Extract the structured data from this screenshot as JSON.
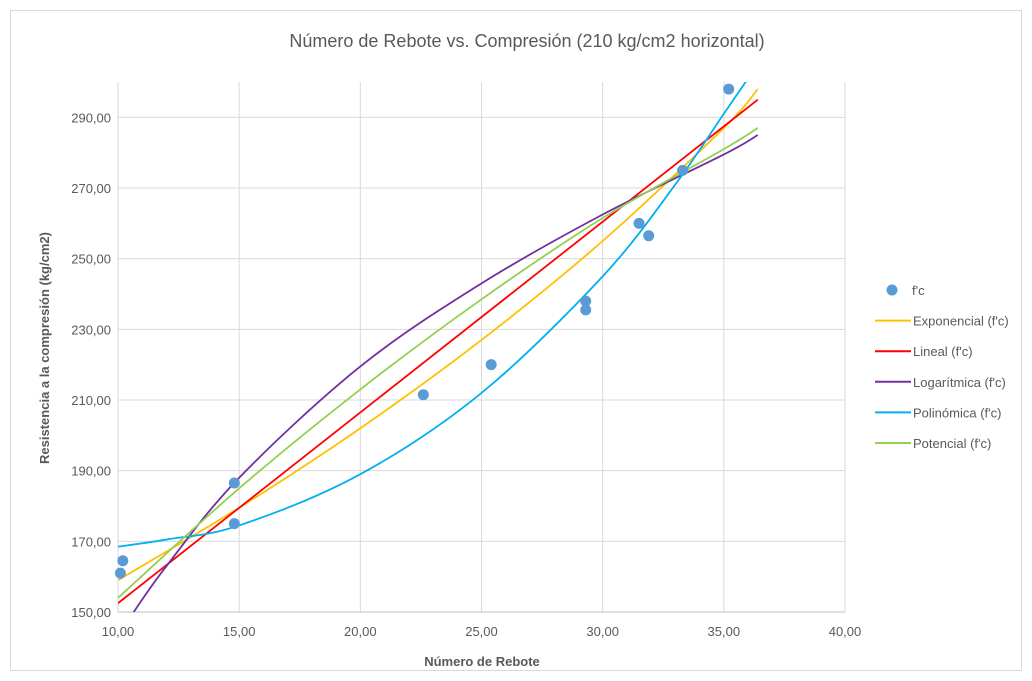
{
  "chart_data": {
    "type": "scatter",
    "title": "Número de Rebote vs. Compresión (210 kg/cm2 horizontal)",
    "xlabel": "Número de Rebote",
    "ylabel": "Resistencia a la compresión (kg/cm2)",
    "xlim": [
      10,
      40
    ],
    "ylim": [
      150,
      300
    ],
    "x_ticks": [
      "10,00",
      "15,00",
      "20,00",
      "25,00",
      "30,00",
      "35,00",
      "40,00"
    ],
    "y_ticks": [
      "150,00",
      "170,00",
      "190,00",
      "210,00",
      "230,00",
      "250,00",
      "270,00",
      "290,00"
    ],
    "grid": true,
    "legend_position": "right",
    "points": {
      "name": "f'c",
      "color": "#5b9bd5",
      "x": [
        10.1,
        10.2,
        14.8,
        14.8,
        22.6,
        25.4,
        29.3,
        29.3,
        31.5,
        31.9,
        33.3,
        35.2
      ],
      "y": [
        161.0,
        164.5,
        186.5,
        175.0,
        211.5,
        220.0,
        238.0,
        235.5,
        260.0,
        256.5,
        275.0,
        298.0
      ]
    },
    "trendlines": [
      {
        "name": "Exponencial (f'c)",
        "color": "#ffc000",
        "x": [
          10,
          15,
          20,
          25,
          30,
          35,
          36.4
        ],
        "y": [
          159,
          179.5,
          202,
          227,
          255,
          287,
          298
        ]
      },
      {
        "name": "Lineal (f'c)",
        "color": "#ff0000",
        "x": [
          10,
          36.4
        ],
        "y": [
          152.5,
          295
        ]
      },
      {
        "name": "Logarítmica (f'c)",
        "color": "#7030a0",
        "x": [
          10.5,
          12,
          15,
          20,
          25,
          30,
          35,
          36.4
        ],
        "y": [
          148.5,
          163,
          188,
          219.5,
          243,
          262.5,
          279.5,
          285
        ]
      },
      {
        "name": "Polinómica (f'c)",
        "color": "#00b0f0",
        "x": [
          10,
          12,
          15,
          20,
          25,
          30,
          33,
          35,
          36
        ],
        "y": [
          168.5,
          170.5,
          174.5,
          189,
          212,
          245,
          271,
          291,
          301
        ]
      },
      {
        "name": "Potencial (f'c)",
        "color": "#92d050",
        "x": [
          10,
          15,
          20,
          25,
          30,
          35,
          36.4
        ],
        "y": [
          154,
          185,
          213,
          238.5,
          261.5,
          281,
          287
        ]
      }
    ]
  }
}
